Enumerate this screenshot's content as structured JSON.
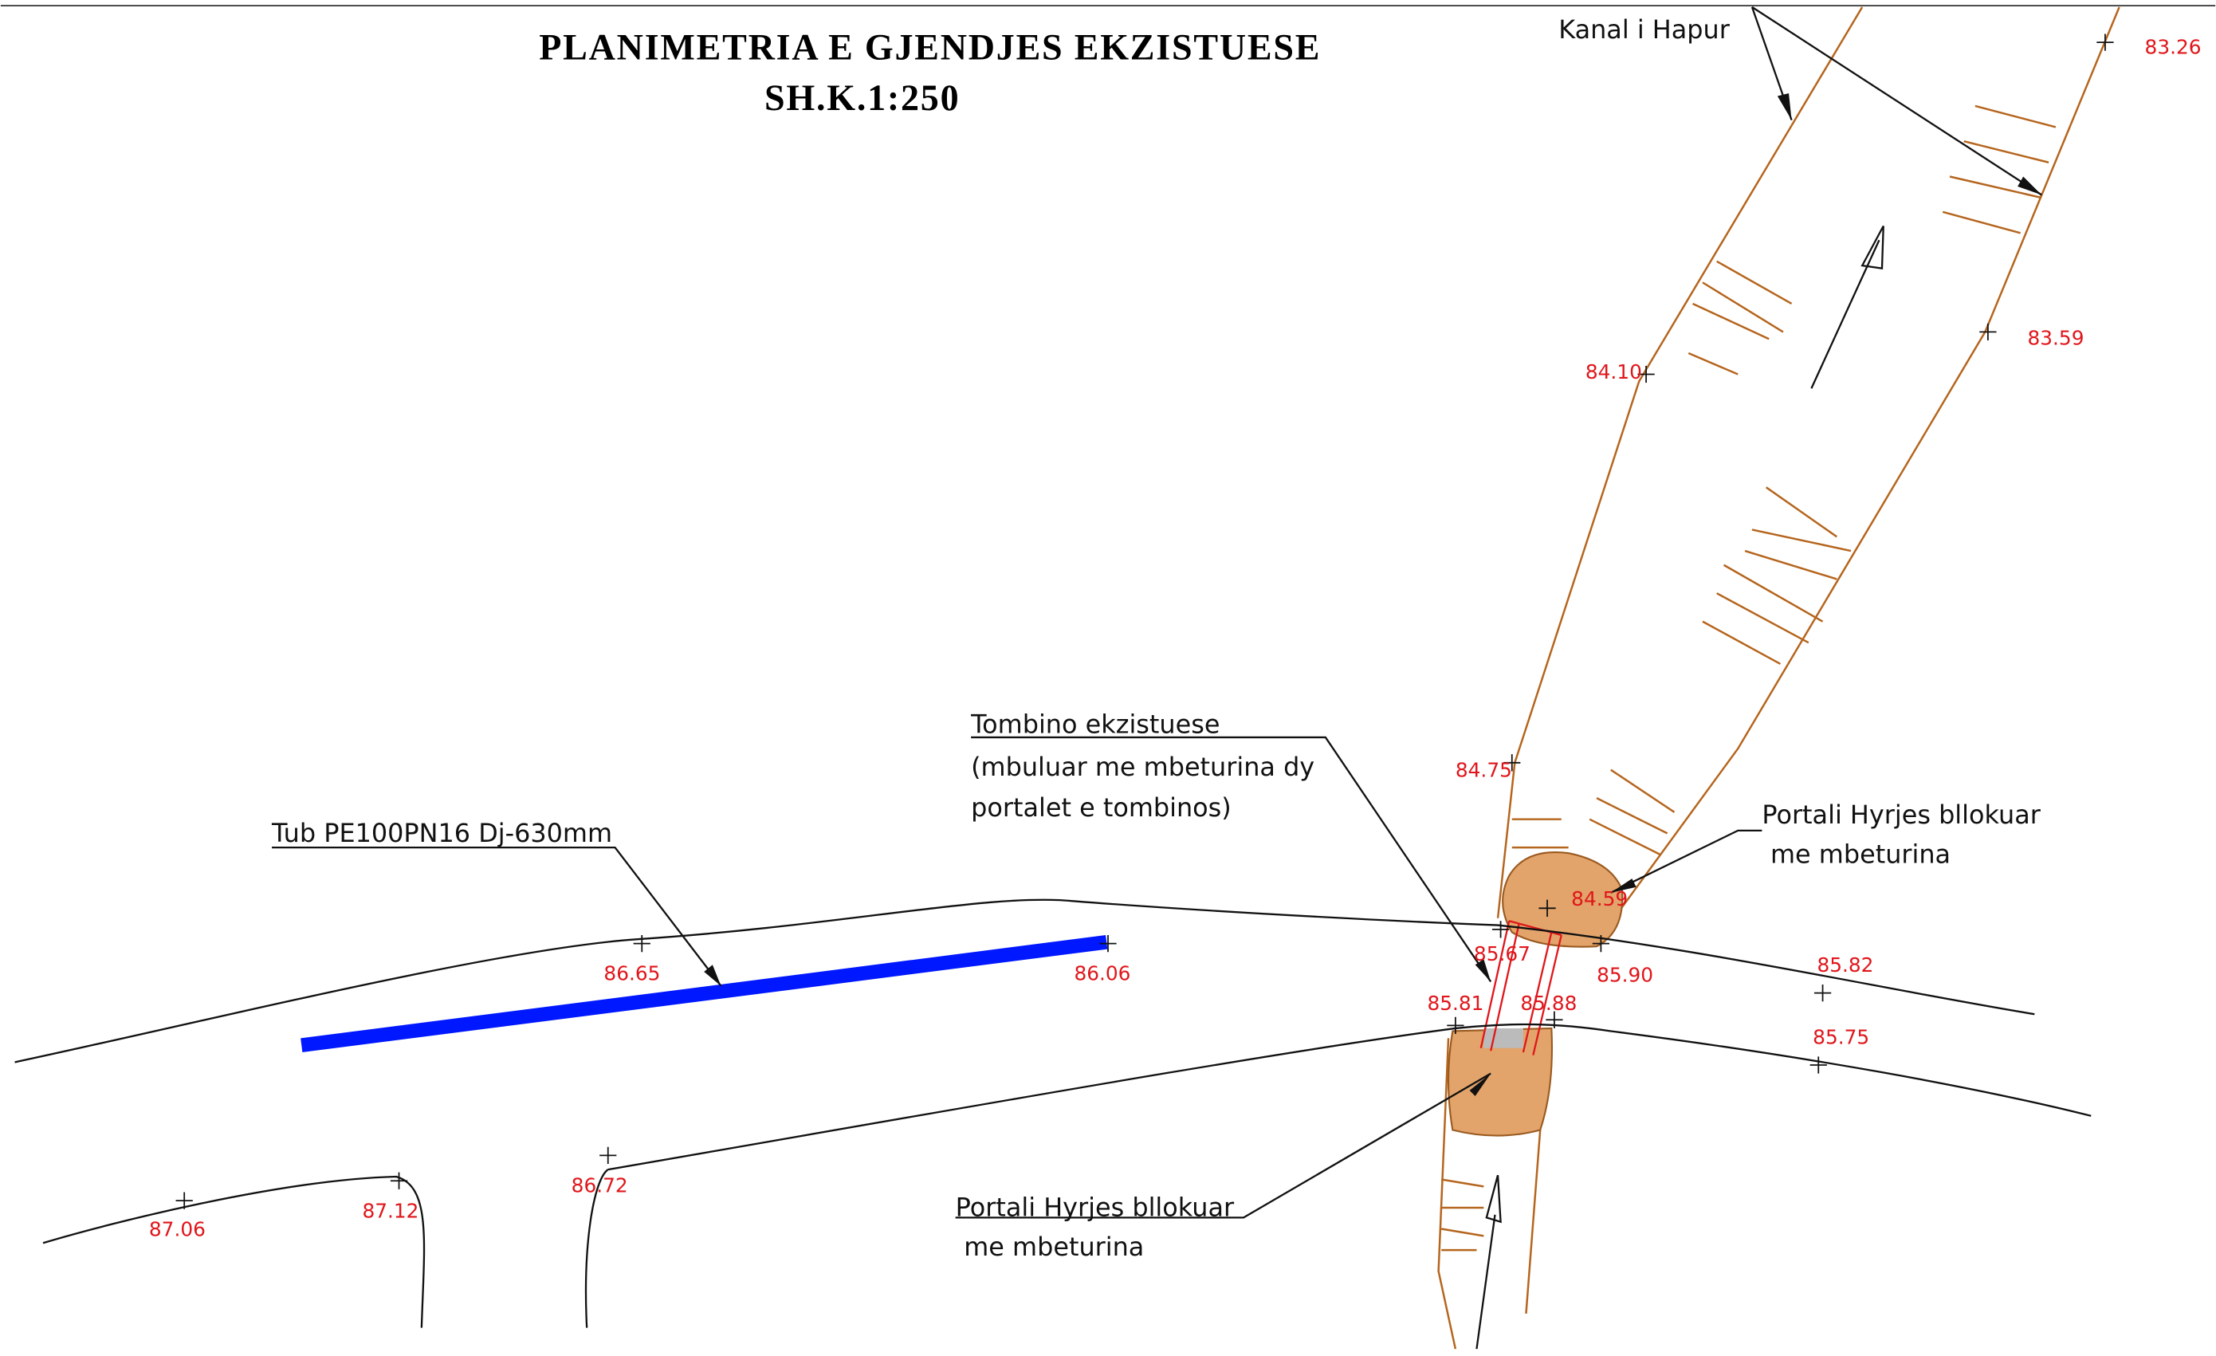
{
  "header": {
    "title": "PLANIMETRIA E GJENDJES EKZISTUESE",
    "scale": "SH.K.1:250"
  },
  "annotations": {
    "canal": "Kanal i Hapur",
    "pipe": "Tub PE100PN16 Dj-630mm",
    "culvert": [
      "Tombino ekzistuese",
      "(mbuluar me mbeturina dy",
      "portalet e tombinos)"
    ],
    "portal_upper": [
      "Portali Hyrjes bllokuar",
      "me mbeturina"
    ],
    "portal_lower": [
      "Portali Hyrjes bllokuar",
      "me mbeturina"
    ]
  },
  "elevations": [
    "83.26",
    "83.59",
    "84.10",
    "84.75",
    "84.59",
    "85.67",
    "85.81",
    "85.88",
    "85.90",
    "85.82",
    "85.75",
    "86.65",
    "86.06",
    "86.72",
    "87.12",
    "87.06"
  ]
}
